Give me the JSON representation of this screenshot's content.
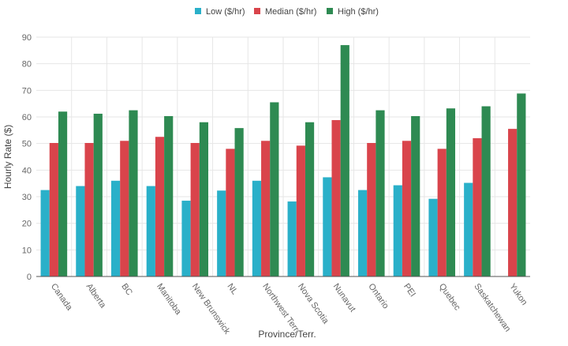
{
  "chart_data": {
    "type": "bar",
    "title": "",
    "xlabel": "Province/Terr.",
    "ylabel": "Hourly Rate ($)",
    "ylim": [
      0,
      90
    ],
    "yticks": [
      0,
      10,
      20,
      30,
      40,
      50,
      60,
      70,
      80,
      90
    ],
    "grid": true,
    "legend_position": "top-center",
    "categories": [
      "Canada",
      "Alberta",
      "BC",
      "Manitoba",
      "New Brunswick",
      "NL",
      "Northwest Terr.",
      "Nova Scotia",
      "Nunavut",
      "Ontario",
      "PEI",
      "Quebec",
      "Saskatchewan",
      "Yukon"
    ],
    "series": [
      {
        "name": "Low ($/hr)",
        "color": "#2ab0c9",
        "values": [
          32.5,
          34,
          36,
          34,
          28.5,
          32.3,
          36,
          28.2,
          37.3,
          32.5,
          34.3,
          29.2,
          35.2,
          null
        ]
      },
      {
        "name": "Median ($/hr)",
        "color": "#d9444b",
        "values": [
          50.2,
          50.2,
          51,
          52.5,
          50.2,
          48,
          51,
          49.2,
          58.8,
          50.2,
          51,
          48,
          52,
          55.5
        ]
      },
      {
        "name": "High ($/hr)",
        "color": "#2e8a52",
        "values": [
          62,
          61.2,
          62.5,
          60.3,
          58,
          55.8,
          65.5,
          58,
          87,
          62.5,
          60.3,
          63.2,
          64,
          68.8
        ]
      }
    ]
  }
}
